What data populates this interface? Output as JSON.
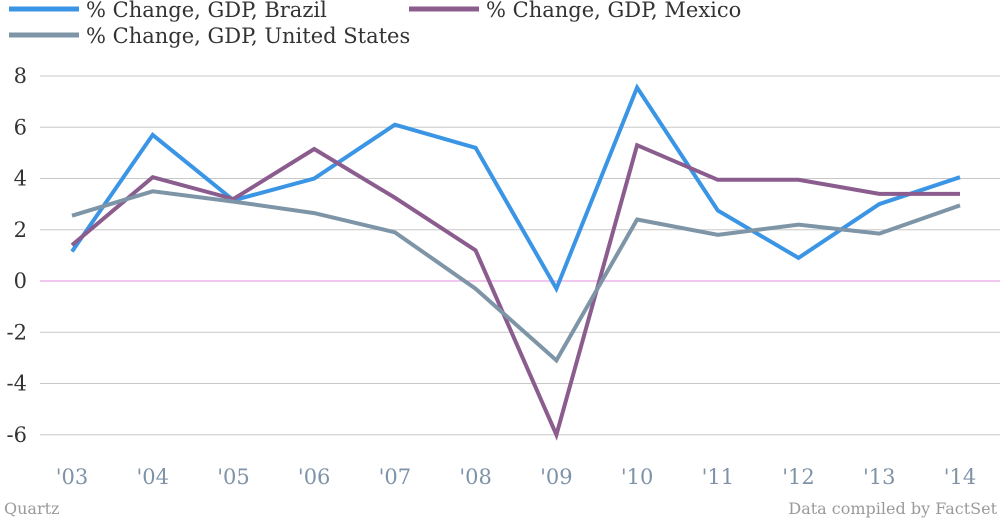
{
  "chart_data": {
    "type": "line",
    "categories": [
      "'03",
      "'04",
      "'05",
      "'06",
      "'07",
      "'08",
      "'09",
      "'10",
      "'11",
      "'12",
      "'13",
      "'14"
    ],
    "series": [
      {
        "name": "% Change, GDP, Brazil",
        "color": "#3b95e5",
        "values": [
          1.15,
          5.7,
          3.15,
          4.0,
          6.1,
          5.2,
          -0.3,
          7.55,
          2.75,
          0.9,
          3.0,
          4.05
        ]
      },
      {
        "name": "% Change, GDP, Mexico",
        "color": "#8b5c8e",
        "values": [
          1.4,
          4.05,
          3.2,
          5.15,
          3.25,
          1.2,
          -6.0,
          5.3,
          3.95,
          3.95,
          3.4,
          3.4
        ]
      },
      {
        "name": "% Change, GDP, United States",
        "color": "#7d95a6",
        "values": [
          2.55,
          3.5,
          3.1,
          2.65,
          1.9,
          -0.3,
          -3.1,
          2.4,
          1.8,
          2.2,
          1.85,
          2.95
        ]
      }
    ],
    "yticks": [
      "8",
      "6",
      "4",
      "2",
      "0",
      "-2",
      "-4",
      "-6"
    ],
    "ylim": [
      -7,
      8.2
    ],
    "grid": true,
    "zero_line_color": "#e38fe0",
    "legend_placement": "top-left"
  },
  "footer": {
    "source_left": "Quartz",
    "source_right": "Data compiled by FactSet"
  }
}
